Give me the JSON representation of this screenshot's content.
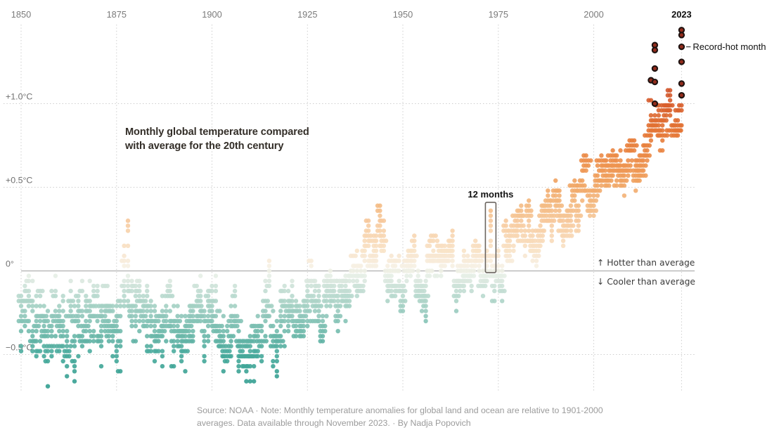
{
  "labels": {
    "title_line1": "Monthly global temperature compared",
    "title_line2": "with average for the 20th century",
    "record_annotation": "Record-hot month",
    "twelve_months": "12 months",
    "hotter": "↑ Hotter than average",
    "cooler": "↓ Cooler than average",
    "source_line1": "Source: NOAA  ·  Note: Monthly temperature anomalies for global land and ocean are relative to 1901-2000",
    "source_line2": "averages. Data available through November 2023.  ·  By Nadja Popovich"
  },
  "chart_data": {
    "type": "scatter",
    "title": "Monthly global temperature compared with average for the 20th century",
    "unit": "°C anomaly relative to 1901-2000 average",
    "grid": "dotted",
    "xlim": [
      1850,
      2023
    ],
    "ylim": [
      -0.75,
      1.5
    ],
    "x_ticks": [
      "1850",
      "1875",
      "1900",
      "1925",
      "1950",
      "1975",
      "2000",
      "2023"
    ],
    "x_tick_years": [
      1850,
      1875,
      1900,
      1925,
      1950,
      1975,
      2000,
      2023
    ],
    "emphasized_x_tick": "2023",
    "y_ticks": [
      {
        "value": 1.0,
        "label": "+1.0°C",
        "style": "dotted"
      },
      {
        "value": 0.5,
        "label": "+0.5°C",
        "style": "dotted"
      },
      {
        "value": 0.0,
        "label": "0°",
        "style": "solid"
      },
      {
        "value": -0.5,
        "label": "−0.5°C",
        "style": "dotted"
      }
    ],
    "annual_mean_anomalies": {
      "start_year": 1850,
      "values": [
        -0.29,
        -0.18,
        -0.19,
        -0.27,
        -0.29,
        -0.29,
        -0.36,
        -0.45,
        -0.37,
        -0.28,
        -0.35,
        -0.37,
        -0.5,
        -0.27,
        -0.45,
        -0.28,
        -0.27,
        -0.29,
        -0.25,
        -0.28,
        -0.26,
        -0.32,
        -0.24,
        -0.3,
        -0.36,
        -0.38,
        -0.37,
        -0.08,
        -0.01,
        -0.24,
        -0.24,
        -0.19,
        -0.21,
        -0.28,
        -0.36,
        -0.39,
        -0.31,
        -0.37,
        -0.26,
        -0.17,
        -0.41,
        -0.32,
        -0.4,
        -0.44,
        -0.38,
        -0.33,
        -0.2,
        -0.19,
        -0.37,
        -0.25,
        -0.15,
        -0.22,
        -0.34,
        -0.42,
        -0.5,
        -0.34,
        -0.28,
        -0.44,
        -0.49,
        -0.5,
        -0.48,
        -0.5,
        -0.4,
        -0.39,
        -0.21,
        -0.13,
        -0.38,
        -0.45,
        -0.33,
        -0.25,
        -0.26,
        -0.2,
        -0.3,
        -0.28,
        -0.3,
        -0.19,
        -0.07,
        -0.19,
        -0.21,
        -0.35,
        -0.11,
        -0.07,
        -0.13,
        -0.26,
        -0.11,
        -0.16,
        -0.12,
        -0.01,
        -0.02,
        -0.01,
        0.09,
        0.2,
        0.11,
        0.11,
        0.28,
        0.18,
        -0.01,
        -0.03,
        -0.05,
        -0.07,
        -0.15,
        0.0,
        0.05,
        0.13,
        -0.1,
        -0.13,
        -0.18,
        0.07,
        0.12,
        0.08,
        0.05,
        0.09,
        0.1,
        0.12,
        -0.14,
        -0.07,
        -0.01,
        0.0,
        -0.03,
        0.1,
        0.06,
        -0.07,
        0.04,
        0.19,
        -0.06,
        0.02,
        -0.07,
        0.21,
        0.12,
        0.23,
        0.28,
        0.32,
        0.19,
        0.34,
        0.16,
        0.12,
        0.19,
        0.34,
        0.39,
        0.29,
        0.44,
        0.41,
        0.25,
        0.28,
        0.34,
        0.47,
        0.32,
        0.51,
        0.65,
        0.44,
        0.42,
        0.54,
        0.6,
        0.61,
        0.57,
        0.66,
        0.61,
        0.61,
        0.54,
        0.64,
        0.72,
        0.57,
        0.63,
        0.66,
        0.74,
        0.93,
        0.99,
        0.91,
        0.82,
        0.95,
        0.98,
        0.84,
        0.86,
        1.09
      ]
    },
    "explicit_monthly_anomalies": {
      "1877": [
        -0.22,
        -0.18,
        -0.1,
        -0.12,
        -0.15,
        -0.1,
        -0.05,
        0.02,
        0.05,
        0.05,
        0.1,
        0.15
      ],
      "1878": [
        0.25,
        0.3,
        0.28,
        0.15,
        0.05,
        -0.02,
        0.02,
        -0.05,
        -0.08,
        -0.12,
        -0.18,
        -0.22
      ],
      "1973": [
        0.31,
        0.36,
        0.33,
        0.26,
        0.25,
        0.19,
        0.14,
        0.08,
        0.09,
        0.1,
        0.05,
        0.01
      ],
      "2015": [
        0.84,
        0.88,
        0.9,
        0.81,
        0.85,
        0.88,
        0.79,
        0.86,
        0.93,
        1.01,
        1.03,
        1.14
      ],
      "2016": [
        1.13,
        1.35,
        1.32,
        1.21,
        0.93,
        0.9,
        0.87,
        1.0,
        0.9,
        0.85,
        0.88,
        0.83
      ],
      "2023": [
        0.87,
        0.97,
        1.0,
        0.99,
        0.97,
        1.05,
        1.12,
        1.25,
        1.44,
        1.34,
        1.41
      ]
    },
    "record_hot_months": [
      {
        "year": 2015,
        "month": 12,
        "anomaly": 1.14
      },
      {
        "year": 2016,
        "month": 1,
        "anomaly": 1.13
      },
      {
        "year": 2016,
        "month": 2,
        "anomaly": 1.35
      },
      {
        "year": 2016,
        "month": 3,
        "anomaly": 1.32
      },
      {
        "year": 2016,
        "month": 4,
        "anomaly": 1.21
      },
      {
        "year": 2016,
        "month": 8,
        "anomaly": 1.0
      },
      {
        "year": 2023,
        "month": 6,
        "anomaly": 1.05
      },
      {
        "year": 2023,
        "month": 7,
        "anomaly": 1.12
      },
      {
        "year": 2023,
        "month": 8,
        "anomaly": 1.25
      },
      {
        "year": 2023,
        "month": 9,
        "anomaly": 1.44
      },
      {
        "year": 2023,
        "month": 10,
        "anomaly": 1.34,
        "annotated": true
      },
      {
        "year": 2023,
        "month": 11,
        "anomaly": 1.41
      }
    ],
    "highlight_box": {
      "year": 1973,
      "label": "12 months",
      "from": -0.01,
      "to": 0.41
    },
    "monthly_spread_by_era": [
      [
        1879,
        0.26
      ],
      [
        1919,
        0.22
      ],
      [
        1949,
        0.16
      ],
      [
        1979,
        0.13
      ],
      [
        2023,
        0.11
      ]
    ],
    "quantize_step": 0.03,
    "colors": {
      "scale_stops": [
        [
          -0.72,
          "#2f9c8e"
        ],
        [
          -0.5,
          "#47a99b"
        ],
        [
          -0.35,
          "#75bcae"
        ],
        [
          -0.2,
          "#a6d1c5"
        ],
        [
          -0.1,
          "#c9e0d6"
        ],
        [
          -0.03,
          "#e6eee6"
        ],
        [
          0.03,
          "#f6efe2"
        ],
        [
          0.12,
          "#f8e3c8"
        ],
        [
          0.25,
          "#f7d0a8"
        ],
        [
          0.4,
          "#f4b981"
        ],
        [
          0.55,
          "#f0a05e"
        ],
        [
          0.7,
          "#eb8844"
        ],
        [
          0.85,
          "#e37333"
        ],
        [
          1.0,
          "#d75e2d"
        ],
        [
          1.2,
          "#c84c2b"
        ],
        [
          1.45,
          "#bc4428"
        ]
      ],
      "record_fill": "#932c1c",
      "record_stroke": "#1e1210",
      "zero_line": "#b9b9b9",
      "gridline": "#cbcbcb",
      "box_stroke": "#6b6560"
    }
  }
}
